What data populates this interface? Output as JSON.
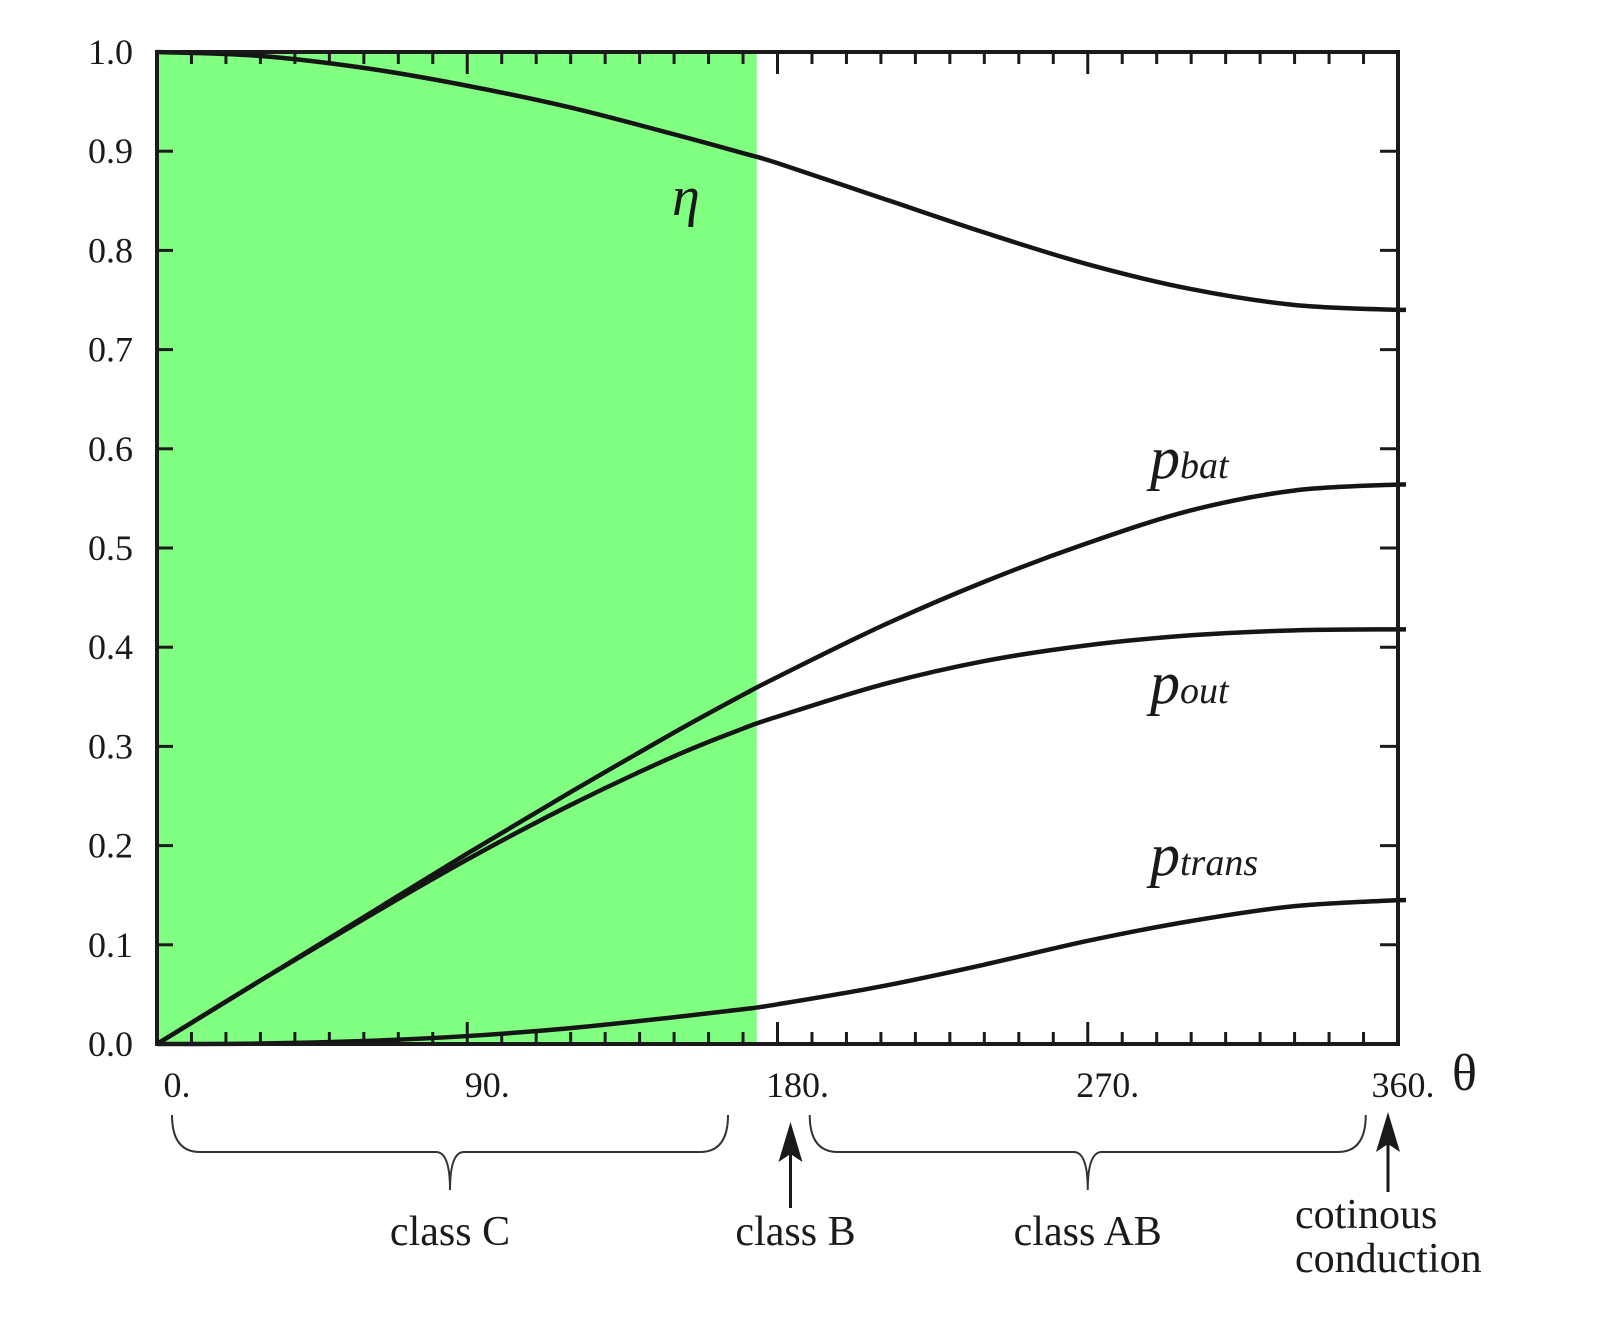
{
  "chart_data": {
    "type": "line",
    "xlabel": "θ",
    "ylabel": "",
    "title": "",
    "xlim": [
      0,
      360
    ],
    "ylim": [
      0,
      1.0
    ],
    "x_ticks": [
      0,
      90,
      180,
      270,
      360
    ],
    "x_tick_labels": [
      "0.",
      "90.",
      "180.",
      "270.",
      "360."
    ],
    "y_ticks": [
      0.0,
      0.1,
      0.2,
      0.3,
      0.4,
      0.5,
      0.6,
      0.7,
      0.8,
      0.9,
      1.0
    ],
    "y_tick_labels": [
      "0.0",
      "0.1",
      "0.2",
      "0.3",
      "0.4",
      "0.5",
      "0.6",
      "0.7",
      "0.8",
      "0.9",
      "1.0"
    ],
    "x": [
      0,
      30,
      60,
      90,
      120,
      150,
      170,
      180,
      210,
      240,
      270,
      300,
      330,
      360
    ],
    "series": [
      {
        "name": "η",
        "label_main": "η",
        "label_sub": "",
        "values": [
          1.0,
          0.996,
          0.984,
          0.966,
          0.944,
          0.917,
          0.898,
          0.888,
          0.853,
          0.818,
          0.786,
          0.761,
          0.745,
          0.74
        ]
      },
      {
        "name": "pbat",
        "label_main": "p",
        "label_sub": "bat",
        "values": [
          0.0,
          0.064,
          0.128,
          0.192,
          0.254,
          0.314,
          0.352,
          0.37,
          0.421,
          0.466,
          0.505,
          0.538,
          0.558,
          0.564
        ]
      },
      {
        "name": "pout",
        "label_main": "p",
        "label_sub": "out",
        "values": [
          0.0,
          0.064,
          0.126,
          0.186,
          0.241,
          0.29,
          0.318,
          0.33,
          0.362,
          0.386,
          0.402,
          0.412,
          0.417,
          0.418
        ]
      },
      {
        "name": "ptrans",
        "label_main": "p",
        "label_sub": "trans",
        "values": [
          0.0,
          0.0005,
          0.003,
          0.008,
          0.016,
          0.027,
          0.035,
          0.04,
          0.058,
          0.08,
          0.104,
          0.124,
          0.139,
          0.145
        ]
      }
    ],
    "shaded_region": {
      "x_range": [
        0,
        174
      ],
      "color": "#80ff80"
    },
    "grid": false,
    "annotations": [
      {
        "id": "class-c",
        "text": "class C",
        "x_range": [
          0,
          170
        ],
        "kind": "brace"
      },
      {
        "id": "class-b",
        "text": "class B",
        "x": 180,
        "kind": "arrow"
      },
      {
        "id": "class-ab",
        "text": "class AB",
        "x_range": [
          185,
          355
        ],
        "kind": "brace"
      },
      {
        "id": "continuous",
        "text_lines": [
          "cotinous",
          "conduction"
        ],
        "x": 360,
        "kind": "arrow"
      }
    ]
  }
}
